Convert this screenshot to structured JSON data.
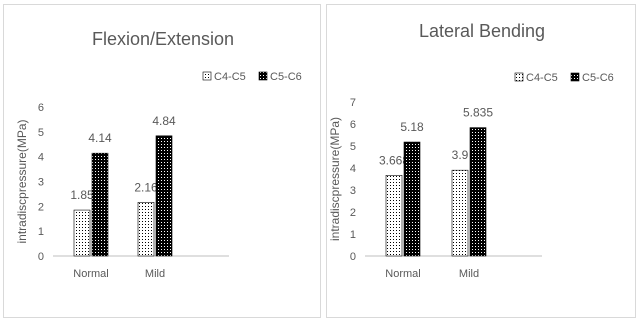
{
  "chart_data": [
    {
      "type": "bar",
      "title": "Flexion/Extension",
      "ylabel": "intradiscpressure(MPa)",
      "xlabel": "",
      "categories": [
        "Normal",
        "Mild"
      ],
      "series": [
        {
          "name": "C4-C5",
          "values": [
            1.85,
            2.16
          ],
          "labels": [
            "1.85",
            "2.16"
          ]
        },
        {
          "name": "C5-C6",
          "values": [
            4.14,
            4.84
          ],
          "labels": [
            "4.14",
            "4.84"
          ]
        }
      ],
      "ylim": [
        0,
        6
      ],
      "yticks": [
        "0",
        "1",
        "2",
        "3",
        "4",
        "5",
        "6"
      ],
      "grid": false,
      "legend": "top-right"
    },
    {
      "type": "bar",
      "title": "Lateral Bending",
      "ylabel": "intradiscpressure(MPa)",
      "xlabel": "",
      "categories": [
        "Normal",
        "Mild"
      ],
      "series": [
        {
          "name": "C4-C5",
          "values": [
            3.668,
            3.9
          ],
          "labels": [
            "3.668",
            "3.9"
          ]
        },
        {
          "name": "C5-C6",
          "values": [
            5.18,
            5.835
          ],
          "labels": [
            "5.18",
            "5.835"
          ]
        }
      ],
      "ylim": [
        0,
        7
      ],
      "yticks": [
        "0",
        "1",
        "2",
        "3",
        "4",
        "5",
        "6",
        "7"
      ],
      "grid": false,
      "legend": "top-right"
    }
  ],
  "colors": {
    "text": "#595959",
    "axis": "#bfbfbf",
    "bar_fill": "#000000",
    "bar_pattern_bg": "#ffffff"
  }
}
